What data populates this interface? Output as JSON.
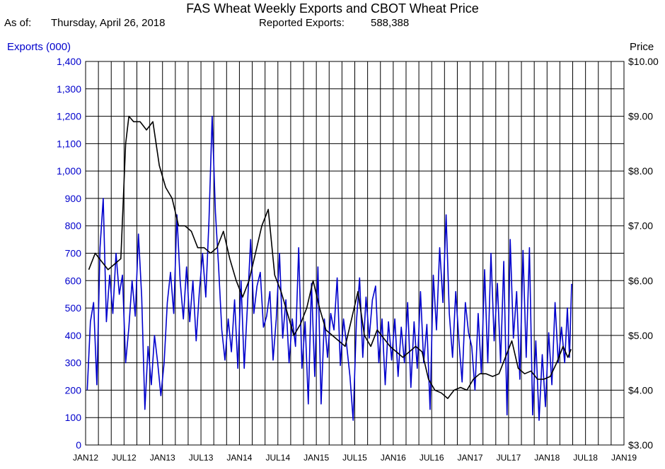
{
  "header": {
    "title": "FAS Wheat Weekly Exports and CBOT Wheat Price",
    "as_of_label": "As of:",
    "as_of_date": "Thursday, April 26, 2018",
    "reported_label": "Reported Exports:",
    "reported_value": "588,388"
  },
  "chart_data": {
    "type": "line",
    "title": "FAS Wheat Weekly Exports and CBOT Wheat Price",
    "xlabel": "",
    "ylabel_left": "Exports (000)",
    "ylabel_right": "Price",
    "x_ticks": [
      "JAN12",
      "JUL12",
      "JAN13",
      "JUL13",
      "JAN14",
      "JUL14",
      "JAN15",
      "JUL15",
      "JAN16",
      "JUL16",
      "JAN17",
      "JUL17",
      "JAN18",
      "JUL18",
      "JAN19"
    ],
    "y_left_ticks": [
      "0",
      "100",
      "200",
      "300",
      "400",
      "500",
      "600",
      "700",
      "800",
      "900",
      "1,000",
      "1,100",
      "1,200",
      "1,300",
      "1,400"
    ],
    "y_right_ticks": [
      "$3.00",
      "$4.00",
      "$5.00",
      "$6.00",
      "$7.00",
      "$8.00",
      "$9.00",
      "$10.00"
    ],
    "ylim_left": [
      0,
      1400
    ],
    "ylim_right": [
      3.0,
      10.0
    ],
    "xlim": [
      "2012-01",
      "2019-01"
    ],
    "grid": true,
    "colors": {
      "exports": "#0000cc",
      "price": "#000000"
    },
    "series": [
      {
        "color": "#0000cc",
        "axis": "left",
        "points": [
          [
            "2012-01",
            200
          ],
          [
            "2012-01",
            450
          ],
          [
            "2012-02",
            520
          ],
          [
            "2012-02",
            220
          ],
          [
            "2012-03",
            720
          ],
          [
            "2012-03",
            900
          ],
          [
            "2012-04",
            450
          ],
          [
            "2012-04",
            620
          ],
          [
            "2012-05",
            480
          ],
          [
            "2012-05",
            700
          ],
          [
            "2012-06",
            550
          ],
          [
            "2012-06",
            620
          ],
          [
            "2012-07",
            300
          ],
          [
            "2012-07",
            430
          ],
          [
            "2012-08",
            600
          ],
          [
            "2012-08",
            470
          ],
          [
            "2012-09",
            770
          ],
          [
            "2012-09",
            540
          ],
          [
            "2012-10",
            130
          ],
          [
            "2012-10",
            360
          ],
          [
            "2012-11",
            220
          ],
          [
            "2012-11",
            400
          ],
          [
            "2012-12",
            300
          ],
          [
            "2012-12",
            180
          ],
          [
            "2013-01",
            300
          ],
          [
            "2013-01",
            520
          ],
          [
            "2013-02",
            630
          ],
          [
            "2013-02",
            480
          ],
          [
            "2013-03",
            840
          ],
          [
            "2013-03",
            600
          ],
          [
            "2013-04",
            460
          ],
          [
            "2013-04",
            650
          ],
          [
            "2013-05",
            450
          ],
          [
            "2013-05",
            600
          ],
          [
            "2013-06",
            380
          ],
          [
            "2013-06",
            560
          ],
          [
            "2013-07",
            700
          ],
          [
            "2013-07",
            540
          ],
          [
            "2013-08",
            820
          ],
          [
            "2013-08",
            1200
          ],
          [
            "2013-09",
            850
          ],
          [
            "2013-09",
            650
          ],
          [
            "2013-10",
            420
          ],
          [
            "2013-10",
            310
          ],
          [
            "2013-11",
            460
          ],
          [
            "2013-11",
            340
          ],
          [
            "2013-12",
            530
          ],
          [
            "2013-12",
            280
          ],
          [
            "2014-01",
            600
          ],
          [
            "2014-01",
            280
          ],
          [
            "2014-02",
            510
          ],
          [
            "2014-02",
            750
          ],
          [
            "2014-03",
            480
          ],
          [
            "2014-03",
            580
          ],
          [
            "2014-04",
            630
          ],
          [
            "2014-04",
            430
          ],
          [
            "2014-05",
            470
          ],
          [
            "2014-05",
            560
          ],
          [
            "2014-06",
            310
          ],
          [
            "2014-06",
            460
          ],
          [
            "2014-07",
            700
          ],
          [
            "2014-07",
            390
          ],
          [
            "2014-08",
            530
          ],
          [
            "2014-08",
            300
          ],
          [
            "2014-09",
            460
          ],
          [
            "2014-09",
            360
          ],
          [
            "2014-10",
            720
          ],
          [
            "2014-10",
            280
          ],
          [
            "2014-11",
            450
          ],
          [
            "2014-11",
            150
          ],
          [
            "2014-12",
            590
          ],
          [
            "2014-12",
            250
          ],
          [
            "2015-01",
            650
          ],
          [
            "2015-01",
            150
          ],
          [
            "2015-02",
            460
          ],
          [
            "2015-02",
            320
          ],
          [
            "2015-03",
            480
          ],
          [
            "2015-03",
            420
          ],
          [
            "2015-04",
            610
          ],
          [
            "2015-04",
            290
          ],
          [
            "2015-05",
            460
          ],
          [
            "2015-05",
            360
          ],
          [
            "2015-06",
            250
          ],
          [
            "2015-06",
            90
          ],
          [
            "2015-07",
            450
          ],
          [
            "2015-07",
            610
          ],
          [
            "2015-08",
            320
          ],
          [
            "2015-08",
            540
          ],
          [
            "2015-09",
            390
          ],
          [
            "2015-09",
            530
          ],
          [
            "2015-10",
            580
          ],
          [
            "2015-10",
            300
          ],
          [
            "2015-11",
            460
          ],
          [
            "2015-11",
            220
          ],
          [
            "2015-12",
            450
          ],
          [
            "2015-12",
            310
          ],
          [
            "2016-01",
            460
          ],
          [
            "2016-01",
            250
          ],
          [
            "2016-02",
            430
          ],
          [
            "2016-02",
            300
          ],
          [
            "2016-03",
            520
          ],
          [
            "2016-03",
            210
          ],
          [
            "2016-04",
            450
          ],
          [
            "2016-04",
            280
          ],
          [
            "2016-05",
            560
          ],
          [
            "2016-05",
            300
          ],
          [
            "2016-06",
            440
          ],
          [
            "2016-06",
            130
          ],
          [
            "2016-07",
            620
          ],
          [
            "2016-07",
            420
          ],
          [
            "2016-08",
            720
          ],
          [
            "2016-08",
            520
          ],
          [
            "2016-09",
            840
          ],
          [
            "2016-09",
            480
          ],
          [
            "2016-10",
            320
          ],
          [
            "2016-10",
            560
          ],
          [
            "2016-11",
            380
          ],
          [
            "2016-11",
            230
          ],
          [
            "2016-12",
            520
          ],
          [
            "2016-12",
            410
          ],
          [
            "2017-01",
            360
          ],
          [
            "2017-01",
            200
          ],
          [
            "2017-02",
            480
          ],
          [
            "2017-02",
            260
          ],
          [
            "2017-03",
            640
          ],
          [
            "2017-03",
            300
          ],
          [
            "2017-04",
            700
          ],
          [
            "2017-04",
            380
          ],
          [
            "2017-05",
            590
          ],
          [
            "2017-05",
            300
          ],
          [
            "2017-06",
            670
          ],
          [
            "2017-06",
            110
          ],
          [
            "2017-07",
            750
          ],
          [
            "2017-07",
            390
          ],
          [
            "2017-08",
            560
          ],
          [
            "2017-08",
            240
          ],
          [
            "2017-09",
            710
          ],
          [
            "2017-09",
            320
          ],
          [
            "2017-10",
            720
          ],
          [
            "2017-10",
            110
          ],
          [
            "2017-11",
            380
          ],
          [
            "2017-11",
            90
          ],
          [
            "2017-12",
            330
          ],
          [
            "2017-12",
            140
          ],
          [
            "2018-01",
            410
          ],
          [
            "2018-01",
            220
          ],
          [
            "2018-02",
            520
          ],
          [
            "2018-02",
            300
          ],
          [
            "2018-03",
            430
          ],
          [
            "2018-03",
            300
          ],
          [
            "2018-04",
            500
          ],
          [
            "2018-04",
            320
          ],
          [
            "2018-04",
            588
          ]
        ]
      },
      {
        "color": "#000000",
        "axis": "right",
        "points": [
          [
            "2012-01",
            6.2
          ],
          [
            "2012-02",
            6.5
          ],
          [
            "2012-03",
            6.35
          ],
          [
            "2012-04",
            6.2
          ],
          [
            "2012-05",
            6.3
          ],
          [
            "2012-06",
            6.4
          ],
          [
            "2012-07",
            8.5
          ],
          [
            "2012-07",
            9.0
          ],
          [
            "2012-08",
            8.9
          ],
          [
            "2012-09",
            8.9
          ],
          [
            "2012-10",
            8.75
          ],
          [
            "2012-11",
            8.9
          ],
          [
            "2012-12",
            8.1
          ],
          [
            "2013-01",
            7.7
          ],
          [
            "2013-02",
            7.5
          ],
          [
            "2013-03",
            7.0
          ],
          [
            "2013-04",
            7.0
          ],
          [
            "2013-05",
            6.9
          ],
          [
            "2013-06",
            6.6
          ],
          [
            "2013-07",
            6.6
          ],
          [
            "2013-08",
            6.5
          ],
          [
            "2013-09",
            6.6
          ],
          [
            "2013-10",
            6.9
          ],
          [
            "2013-11",
            6.4
          ],
          [
            "2013-12",
            6.0
          ],
          [
            "2014-01",
            5.7
          ],
          [
            "2014-02",
            6.0
          ],
          [
            "2014-03",
            6.5
          ],
          [
            "2014-04",
            7.0
          ],
          [
            "2014-05",
            7.3
          ],
          [
            "2014-06",
            6.1
          ],
          [
            "2014-07",
            5.8
          ],
          [
            "2014-08",
            5.4
          ],
          [
            "2014-09",
            5.0
          ],
          [
            "2014-10",
            5.2
          ],
          [
            "2014-11",
            5.5
          ],
          [
            "2014-12",
            6.0
          ],
          [
            "2015-01",
            5.5
          ],
          [
            "2015-02",
            5.1
          ],
          [
            "2015-03",
            5.0
          ],
          [
            "2015-04",
            4.9
          ],
          [
            "2015-05",
            4.8
          ],
          [
            "2015-06",
            5.3
          ],
          [
            "2015-07",
            5.8
          ],
          [
            "2015-08",
            5.0
          ],
          [
            "2015-09",
            4.8
          ],
          [
            "2015-10",
            5.1
          ],
          [
            "2015-11",
            4.95
          ],
          [
            "2015-12",
            4.8
          ],
          [
            "2016-01",
            4.7
          ],
          [
            "2016-02",
            4.6
          ],
          [
            "2016-03",
            4.7
          ],
          [
            "2016-04",
            4.8
          ],
          [
            "2016-05",
            4.7
          ],
          [
            "2016-06",
            4.2
          ],
          [
            "2016-07",
            4.0
          ],
          [
            "2016-08",
            3.95
          ],
          [
            "2016-09",
            3.85
          ],
          [
            "2016-10",
            4.0
          ],
          [
            "2016-11",
            4.05
          ],
          [
            "2016-12",
            4.0
          ],
          [
            "2017-01",
            4.2
          ],
          [
            "2017-02",
            4.3
          ],
          [
            "2017-03",
            4.3
          ],
          [
            "2017-04",
            4.25
          ],
          [
            "2017-05",
            4.3
          ],
          [
            "2017-06",
            4.6
          ],
          [
            "2017-07",
            4.9
          ],
          [
            "2017-08",
            4.4
          ],
          [
            "2017-09",
            4.3
          ],
          [
            "2017-10",
            4.35
          ],
          [
            "2017-11",
            4.2
          ],
          [
            "2017-12",
            4.2
          ],
          [
            "2018-01",
            4.25
          ],
          [
            "2018-02",
            4.5
          ],
          [
            "2018-03",
            4.8
          ],
          [
            "2018-04",
            4.6
          ],
          [
            "2018-04",
            4.75
          ]
        ]
      }
    ]
  }
}
